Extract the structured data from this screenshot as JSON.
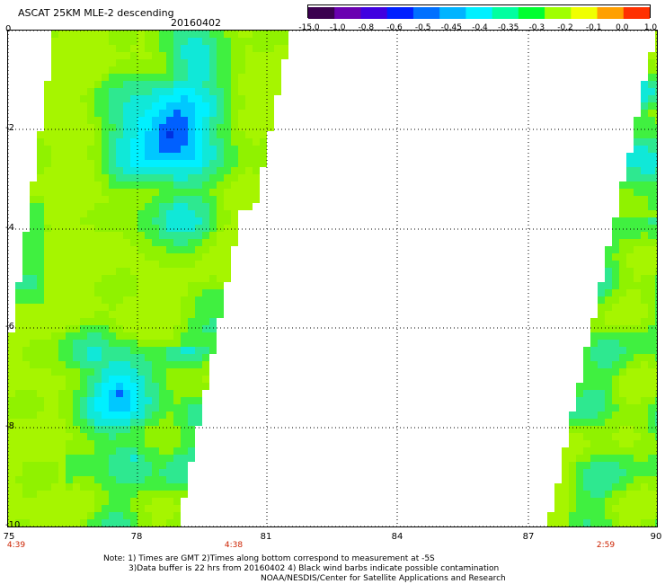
{
  "header": {
    "title": "ASCAT 25KM MLE-2 descending",
    "date": "20160402"
  },
  "colorbar": {
    "labels": [
      "-15.0",
      "-1.0",
      "-0.8",
      "-0.6",
      "-0.5",
      "-0.45",
      "-0.4",
      "-0.35",
      "-0.3",
      "-0.2",
      "-0.1",
      "0.0",
      "1.0"
    ],
    "colors": [
      "#3b0050",
      "#6a00b0",
      "#4000e0",
      "#0020ff",
      "#0070ff",
      "#00b4ff",
      "#00f0ff",
      "#00ffa0",
      "#00ff30",
      "#a0ff00",
      "#f0ff00",
      "#ffa000",
      "#ff3000"
    ]
  },
  "map": {
    "y_ticks": [
      "0",
      "-2",
      "-4",
      "-6",
      "-8",
      "-10"
    ],
    "x_ticks": [
      "75",
      "78",
      "81",
      "84",
      "87",
      "90"
    ],
    "times": [
      {
        "label": "4:39",
        "lon": 75
      },
      {
        "label": "4:38",
        "lon": 80.3
      },
      {
        "label": "2:59",
        "lon": 89.3
      }
    ]
  },
  "notes": {
    "line1": "Note: 1) Times are GMT 2)Times along bottom correspond to measurement at -5S",
    "line2": "3)Data buffer is 22 hrs from 20160402 4) Black wind barbs indicate possible contamination",
    "line3": "NOAA/NESDIS/Center for Satellite Applications and Research"
  },
  "colors": {
    "swath_base": "#a6f500",
    "swath_green": "#40f040",
    "cyan": "#00f0ff",
    "blue": "#0060ff",
    "dark_blue": "#0030e0",
    "time_text": "#cc2200"
  }
}
